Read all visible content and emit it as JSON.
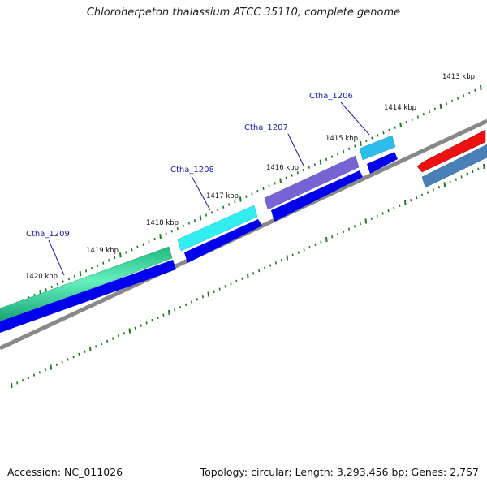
{
  "title": "Chloroherpeton thalassium ATCC 35110, complete genome",
  "footer": {
    "accession": "Accession: NC_011026",
    "summary": "Topology: circular; Length: 3,293,456 bp; Genes: 2,757"
  },
  "scale_labels": [
    "1413 kbp",
    "1414 kbp",
    "1415 kbp",
    "1416 kbp",
    "1417 kbp",
    "1418 kbp",
    "1419 kbp",
    "1420 kbp"
  ],
  "gene_labels": [
    "Ctha_1206",
    "Ctha_1207",
    "Ctha_1208",
    "Ctha_1209"
  ],
  "colors": {
    "backbone": "#888888",
    "tick": "#1e7a1e",
    "cds": "#0000ee",
    "gene_1206": "#33c6f0",
    "gene_1207": "#7a66d8",
    "gene_1208": "#33f0f0",
    "gene_1209": "#22dd99",
    "gene_red": "#ee1111",
    "gene_steel": "#4a80b8",
    "label_line": "#1a1aa8"
  }
}
